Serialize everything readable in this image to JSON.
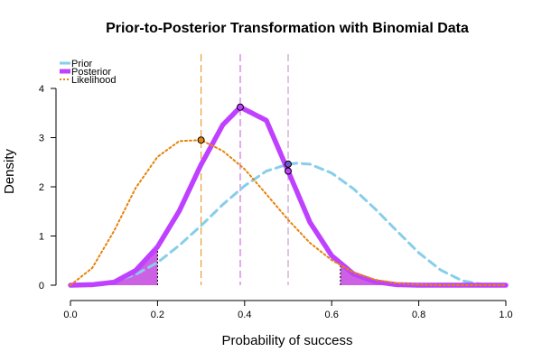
{
  "chart_data": {
    "type": "line",
    "title": "Prior-to-Posterior Transformation with Binomial Data",
    "xlabel": "Probability of success",
    "ylabel": "Density",
    "xlim": [
      0,
      1
    ],
    "ylim": [
      0,
      4
    ],
    "xticks": [
      "0.0",
      "0.2",
      "0.4",
      "0.6",
      "0.8",
      "1.0"
    ],
    "yticks": [
      "0",
      "1",
      "2",
      "3",
      "4"
    ],
    "legend_position": "top-left",
    "series": [
      {
        "name": "Prior",
        "color": "#87CEEB",
        "style": "dashed",
        "x": [
          0,
          0.05,
          0.1,
          0.15,
          0.2,
          0.25,
          0.3,
          0.35,
          0.4,
          0.45,
          0.5,
          0.52,
          0.55,
          0.6,
          0.65,
          0.7,
          0.75,
          0.8,
          0.85,
          0.9,
          0.95,
          1
        ],
        "y": [
          0,
          0.01,
          0.07,
          0.22,
          0.46,
          0.81,
          1.21,
          1.64,
          2.02,
          2.32,
          2.46,
          2.48,
          2.46,
          2.28,
          1.96,
          1.55,
          1.1,
          0.66,
          0.31,
          0.09,
          0.01,
          0
        ]
      },
      {
        "name": "Posterior",
        "color": "#BF40FF",
        "style": "solid",
        "x": [
          0,
          0.05,
          0.1,
          0.15,
          0.2,
          0.25,
          0.3,
          0.35,
          0.39,
          0.45,
          0.5,
          0.55,
          0.6,
          0.65,
          0.7,
          0.75,
          0.8,
          0.85,
          0.9,
          0.95,
          1
        ],
        "y": [
          0,
          0.01,
          0.06,
          0.3,
          0.78,
          1.51,
          2.45,
          3.26,
          3.62,
          3.35,
          2.32,
          1.28,
          0.6,
          0.23,
          0.07,
          0.01,
          0,
          0,
          0,
          0,
          0
        ]
      },
      {
        "name": "Likelihood",
        "color": "#E8820C",
        "style": "dotted",
        "x": [
          0,
          0.05,
          0.1,
          0.15,
          0.2,
          0.25,
          0.3,
          0.35,
          0.4,
          0.45,
          0.5,
          0.55,
          0.6,
          0.65,
          0.7,
          0.75,
          0.8,
          0.85,
          0.9,
          0.95,
          1
        ],
        "y": [
          0,
          0.35,
          1.1,
          1.98,
          2.61,
          2.93,
          2.95,
          2.73,
          2.36,
          1.85,
          1.33,
          0.86,
          0.51,
          0.26,
          0.11,
          0.04,
          0.01,
          0,
          0,
          0,
          0
        ]
      }
    ],
    "shaded_tails": [
      [
        0,
        0.2
      ],
      [
        0.62,
        1
      ]
    ],
    "reference_lines": [
      {
        "x": 0.3,
        "color": "#E8A030"
      },
      {
        "x": 0.39,
        "color": "#D070E0"
      },
      {
        "x": 0.5,
        "color": "#C8A0C8"
      }
    ],
    "markers": [
      {
        "x": 0.3,
        "y": 2.95,
        "color": "#E8820C"
      },
      {
        "x": 0.39,
        "y": 3.62,
        "color": "#BF40FF"
      },
      {
        "x": 0.5,
        "y": 2.46,
        "color": "#6A5ACD"
      },
      {
        "x": 0.5,
        "y": 2.32,
        "color": "#BF40FF"
      }
    ]
  }
}
